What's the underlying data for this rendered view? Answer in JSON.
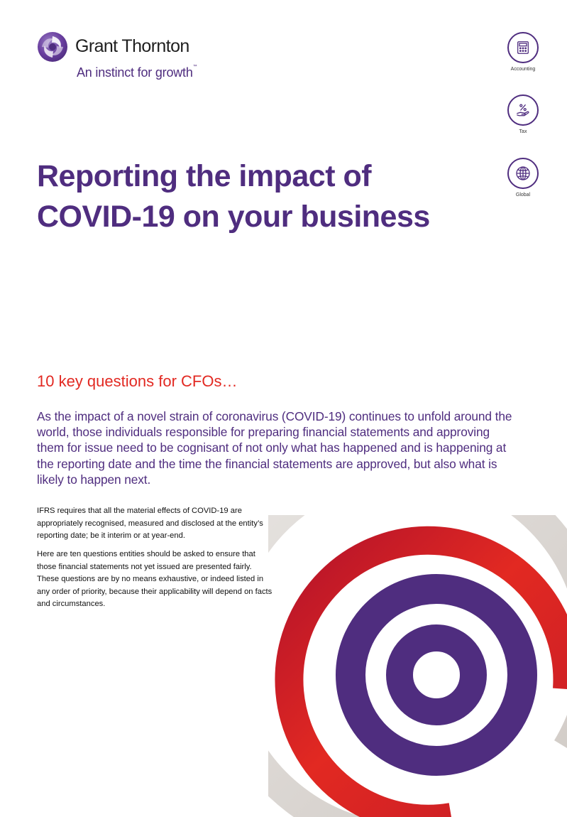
{
  "brand": {
    "name": "Grant Thornton",
    "tagline": "An instinct for growth",
    "trademark": "™",
    "colors": {
      "purple": "#4f2d7f",
      "red": "#e22922",
      "grey": "#ddd9d6"
    }
  },
  "services": [
    {
      "label": "Accounting",
      "icon": "calculator-icon"
    },
    {
      "label": "Tax",
      "icon": "percent-hand-icon"
    },
    {
      "label": "Global",
      "icon": "globe-icon"
    }
  ],
  "document": {
    "title": "Reporting the impact of COVID-19 on your business",
    "subtitle": "10 key questions for CFOs…",
    "intro": "As the impact of a novel strain of coronavirus (COVID-19) continues to unfold around the world, those individuals responsible for preparing financial statements and approving them for issue need to be cognisant of not only what has happened and is happening at the reporting date and the time the financial statements are approved, but also what is likely to happen next.",
    "paragraphs": [
      "IFRS requires that all the material effects of COVID-19 are appropriately recognised, measured and disclosed at the entity’s reporting date; be it interim or at year-end.",
      "Here are ten questions entities should be asked to ensure that those financial statements not yet issued are presented fairly. These questions are by no means exhaustive, or indeed listed in any order of priority, because their applicability will depend on facts and circumstances."
    ]
  }
}
